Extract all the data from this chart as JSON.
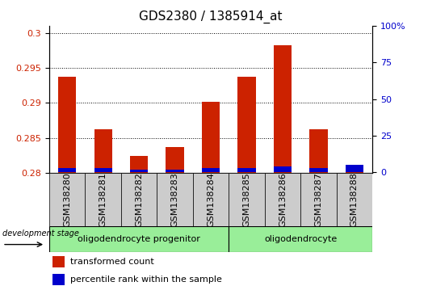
{
  "title": "GDS2380 / 1385914_at",
  "samples": [
    "GSM138280",
    "GSM138281",
    "GSM138282",
    "GSM138283",
    "GSM138284",
    "GSM138285",
    "GSM138286",
    "GSM138287",
    "GSM138288"
  ],
  "transformed_count": [
    0.2937,
    0.2862,
    0.2824,
    0.2837,
    0.2902,
    0.2937,
    0.2982,
    0.2862,
    0.2802
  ],
  "percentile_rank": [
    3,
    3,
    2,
    2,
    3,
    3,
    4,
    3,
    5
  ],
  "ylim_left": [
    0.28,
    0.301
  ],
  "ylim_right": [
    -0.5,
    100
  ],
  "yticks_left": [
    0.28,
    0.285,
    0.29,
    0.295,
    0.3
  ],
  "yticks_right": [
    0,
    25,
    50,
    75,
    100
  ],
  "ytick_right_labels": [
    "0",
    "25",
    "50",
    "75",
    "100%"
  ],
  "bar_color_red": "#cc2200",
  "bar_color_blue": "#0000cc",
  "bar_width": 0.5,
  "group1_label": "oligodendrocyte progenitor",
  "group2_label": "oligodendrocyte",
  "group1_count": 5,
  "group2_count": 4,
  "dev_stage_label": "development stage",
  "legend_red": "transformed count",
  "legend_blue": "percentile rank within the sample",
  "group_bg_color": "#99ee99",
  "tick_bg_color": "#cccccc",
  "title_fontsize": 11,
  "tick_fontsize": 8,
  "baseline": 0.28
}
